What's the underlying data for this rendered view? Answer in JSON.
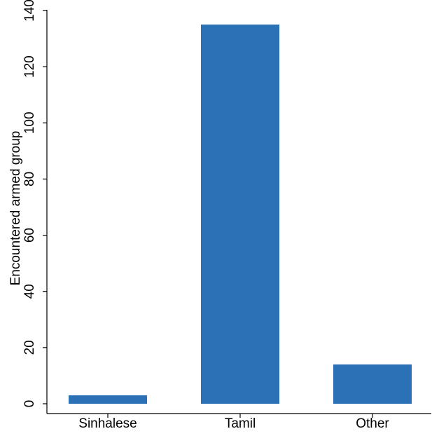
{
  "chart_data": {
    "type": "bar",
    "title": "",
    "xlabel": "",
    "ylabel": "Encountered armed group",
    "categories": [
      "Sinhalese",
      "Tamil",
      "Other"
    ],
    "values": [
      3,
      135,
      14
    ],
    "ylim": [
      0,
      140
    ],
    "yticks": [
      0,
      20,
      40,
      60,
      80,
      100,
      120,
      140
    ],
    "bar_color": "#2a72b5",
    "grid": false,
    "legend": "none"
  }
}
